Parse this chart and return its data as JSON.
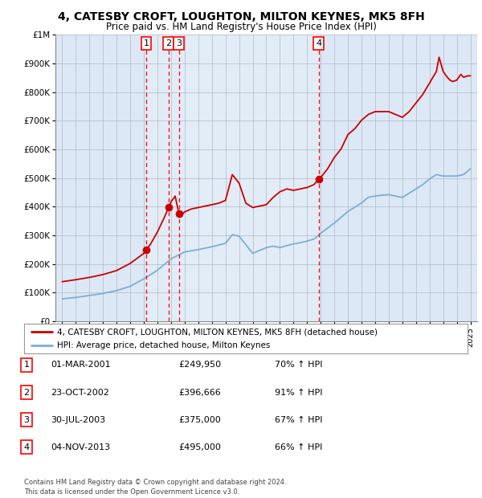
{
  "title": "4, CATESBY CROFT, LOUGHTON, MILTON KEYNES, MK5 8FH",
  "subtitle": "Price paid vs. HM Land Registry's House Price Index (HPI)",
  "hpi_line_color": "#7bafd4",
  "price_line_color": "#cc0000",
  "bg_color": "#ffffff",
  "plot_bg_color": "#dce8f5",
  "grid_color": "#b0b8c8",
  "sale_dates_num": [
    2001.17,
    2002.81,
    2003.58,
    2013.84
  ],
  "sale_prices": [
    249950,
    396666,
    375000,
    495000
  ],
  "sale_labels": [
    "1",
    "2",
    "3",
    "4"
  ],
  "vline_dates": [
    2001.17,
    2002.81,
    2003.58,
    2013.84
  ],
  "legend_entries": [
    "4, CATESBY CROFT, LOUGHTON, MILTON KEYNES, MK5 8FH (detached house)",
    "HPI: Average price, detached house, Milton Keynes"
  ],
  "table_rows": [
    [
      "1",
      "01-MAR-2001",
      "£249,950",
      "70% ↑ HPI"
    ],
    [
      "2",
      "23-OCT-2002",
      "£396,666",
      "91% ↑ HPI"
    ],
    [
      "3",
      "30-JUL-2003",
      "£375,000",
      "67% ↑ HPI"
    ],
    [
      "4",
      "04-NOV-2013",
      "£495,000",
      "66% ↑ HPI"
    ]
  ],
  "footer": "Contains HM Land Registry data © Crown copyright and database right 2024.\nThis data is licensed under the Open Government Licence v3.0.",
  "ylim": [
    0,
    1000000
  ],
  "xlim": [
    1994.5,
    2025.5
  ],
  "ylabel_ticks": [
    0,
    100000,
    200000,
    300000,
    400000,
    500000,
    600000,
    700000,
    800000,
    900000,
    1000000
  ],
  "hpi_curve": [
    [
      1995.0,
      78000
    ],
    [
      1996.0,
      83000
    ],
    [
      1997.0,
      90000
    ],
    [
      1998.0,
      97000
    ],
    [
      1999.0,
      107000
    ],
    [
      2000.0,
      122000
    ],
    [
      2001.0,
      148000
    ],
    [
      2002.0,
      178000
    ],
    [
      2003.0,
      218000
    ],
    [
      2004.0,
      242000
    ],
    [
      2005.0,
      250000
    ],
    [
      2006.0,
      260000
    ],
    [
      2007.0,
      272000
    ],
    [
      2007.5,
      302000
    ],
    [
      2008.0,
      297000
    ],
    [
      2008.5,
      267000
    ],
    [
      2009.0,
      237000
    ],
    [
      2009.5,
      247000
    ],
    [
      2010.0,
      257000
    ],
    [
      2010.5,
      262000
    ],
    [
      2011.0,
      257000
    ],
    [
      2011.5,
      264000
    ],
    [
      2012.0,
      270000
    ],
    [
      2012.5,
      274000
    ],
    [
      2013.0,
      280000
    ],
    [
      2013.5,
      287000
    ],
    [
      2013.84,
      300000
    ],
    [
      2014.0,
      307000
    ],
    [
      2015.0,
      343000
    ],
    [
      2016.0,
      383000
    ],
    [
      2017.0,
      413000
    ],
    [
      2017.5,
      433000
    ],
    [
      2018.0,
      437000
    ],
    [
      2018.5,
      440000
    ],
    [
      2019.0,
      442000
    ],
    [
      2019.5,
      437000
    ],
    [
      2020.0,
      432000
    ],
    [
      2020.5,
      447000
    ],
    [
      2021.0,
      462000
    ],
    [
      2021.5,
      477000
    ],
    [
      2022.0,
      497000
    ],
    [
      2022.5,
      512000
    ],
    [
      2023.0,
      507000
    ],
    [
      2023.5,
      507000
    ],
    [
      2024.0,
      507000
    ],
    [
      2024.5,
      512000
    ],
    [
      2025.0,
      532000
    ]
  ],
  "price_curve": [
    [
      1995.0,
      138000
    ],
    [
      1996.0,
      145000
    ],
    [
      1997.0,
      153000
    ],
    [
      1998.0,
      163000
    ],
    [
      1999.0,
      177000
    ],
    [
      2000.0,
      202000
    ],
    [
      2001.0,
      237000
    ],
    [
      2001.17,
      249950
    ],
    [
      2001.5,
      270000
    ],
    [
      2002.0,
      312000
    ],
    [
      2002.5,
      362000
    ],
    [
      2002.81,
      396666
    ],
    [
      2003.0,
      417000
    ],
    [
      2003.3,
      437000
    ],
    [
      2003.58,
      375000
    ],
    [
      2003.8,
      372000
    ],
    [
      2004.0,
      382000
    ],
    [
      2004.5,
      392000
    ],
    [
      2005.0,
      397000
    ],
    [
      2005.5,
      402000
    ],
    [
      2006.0,
      407000
    ],
    [
      2006.5,
      412000
    ],
    [
      2007.0,
      422000
    ],
    [
      2007.5,
      512000
    ],
    [
      2008.0,
      482000
    ],
    [
      2008.5,
      412000
    ],
    [
      2009.0,
      397000
    ],
    [
      2009.5,
      402000
    ],
    [
      2010.0,
      407000
    ],
    [
      2010.5,
      432000
    ],
    [
      2011.0,
      452000
    ],
    [
      2011.5,
      462000
    ],
    [
      2012.0,
      457000
    ],
    [
      2012.5,
      462000
    ],
    [
      2013.0,
      467000
    ],
    [
      2013.5,
      477000
    ],
    [
      2013.84,
      495000
    ],
    [
      2014.0,
      502000
    ],
    [
      2014.5,
      532000
    ],
    [
      2015.0,
      572000
    ],
    [
      2015.5,
      602000
    ],
    [
      2016.0,
      652000
    ],
    [
      2016.5,
      672000
    ],
    [
      2017.0,
      702000
    ],
    [
      2017.5,
      722000
    ],
    [
      2018.0,
      732000
    ],
    [
      2018.5,
      732000
    ],
    [
      2019.0,
      732000
    ],
    [
      2019.5,
      722000
    ],
    [
      2020.0,
      712000
    ],
    [
      2020.5,
      732000
    ],
    [
      2021.0,
      762000
    ],
    [
      2021.5,
      792000
    ],
    [
      2022.0,
      832000
    ],
    [
      2022.5,
      872000
    ],
    [
      2022.7,
      922000
    ],
    [
      2023.0,
      872000
    ],
    [
      2023.3,
      852000
    ],
    [
      2023.5,
      842000
    ],
    [
      2023.7,
      837000
    ],
    [
      2024.0,
      842000
    ],
    [
      2024.3,
      862000
    ],
    [
      2024.5,
      852000
    ],
    [
      2024.8,
      857000
    ],
    [
      2025.0,
      857000
    ]
  ]
}
